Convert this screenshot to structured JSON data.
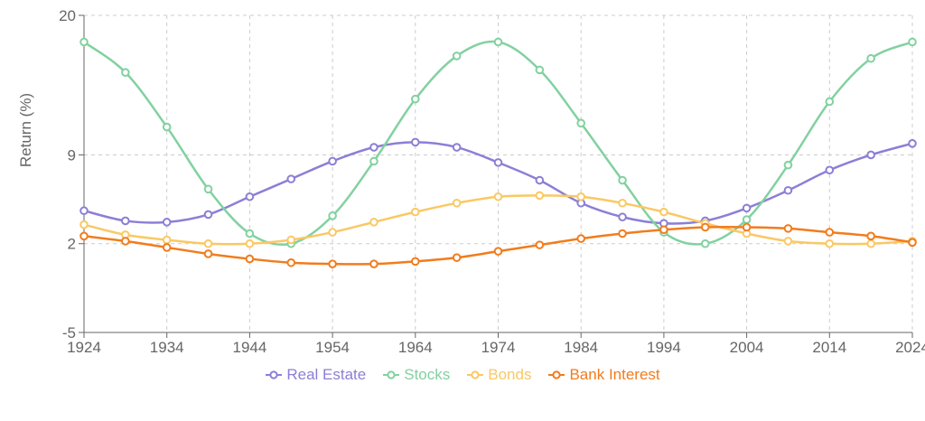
{
  "chart_data": {
    "type": "line",
    "x": [
      1924,
      1929,
      1934,
      1939,
      1944,
      1949,
      1954,
      1959,
      1964,
      1969,
      1974,
      1979,
      1984,
      1989,
      1994,
      1999,
      2004,
      2009,
      2014,
      2019,
      2024
    ],
    "x_ticks": [
      "1924",
      "1934",
      "1944",
      "1954",
      "1964",
      "1974",
      "1984",
      "1994",
      "2004",
      "2014",
      "2024"
    ],
    "xlim": [
      1924,
      2024
    ],
    "ylim": [
      -5,
      20
    ],
    "y_ticks": [
      "-5",
      "2",
      "9",
      "20"
    ],
    "ylabel": "Return (%)",
    "xlabel": "",
    "grid": true,
    "legend_position": "bottom",
    "series": [
      {
        "name": "Real Estate",
        "color": "#8b7fd6",
        "values": [
          4.6,
          3.8,
          3.7,
          4.3,
          5.7,
          7.1,
          8.5,
          9.6,
          10.0,
          9.6,
          8.4,
          7.0,
          5.2,
          4.1,
          3.6,
          3.8,
          4.8,
          6.2,
          7.8,
          9.0,
          9.9
        ]
      },
      {
        "name": "Stocks",
        "color": "#82d1a0",
        "values": [
          17.9,
          15.5,
          11.2,
          6.3,
          2.8,
          2.0,
          4.2,
          8.5,
          13.4,
          16.8,
          17.9,
          15.7,
          11.5,
          7.0,
          2.9,
          2.0,
          3.9,
          8.2,
          13.2,
          16.6,
          17.9
        ]
      },
      {
        "name": "Bonds",
        "color": "#fac864",
        "values": [
          3.5,
          2.7,
          2.3,
          2.0,
          2.0,
          2.3,
          2.9,
          3.7,
          4.5,
          5.2,
          5.7,
          5.8,
          5.7,
          5.2,
          4.5,
          3.6,
          2.8,
          2.2,
          2.0,
          2.0,
          2.2
        ]
      },
      {
        "name": "Bank Interest",
        "color": "#f27c1c",
        "values": [
          2.6,
          2.2,
          1.7,
          1.2,
          0.8,
          0.5,
          0.4,
          0.4,
          0.6,
          0.9,
          1.4,
          1.9,
          2.4,
          2.8,
          3.1,
          3.3,
          3.3,
          3.2,
          2.9,
          2.6,
          2.1
        ]
      }
    ]
  }
}
